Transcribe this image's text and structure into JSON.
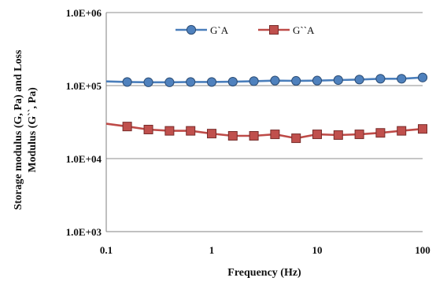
{
  "chart_data": {
    "type": "line",
    "title": "",
    "xlabel": "Frequency  (Hz)",
    "ylabel_lines": [
      "Storage  modulus (G, Pa) and Loss",
      "Modulus (G``, Pa)"
    ],
    "x_scale": "log",
    "y_scale": "log",
    "xlim": [
      0.1,
      100
    ],
    "ylim": [
      1000,
      1000000
    ],
    "x_ticks": [
      {
        "value": 0.1,
        "label": "0.1"
      },
      {
        "value": 1,
        "label": "1"
      },
      {
        "value": 10,
        "label": "10"
      },
      {
        "value": 100,
        "label": "100"
      }
    ],
    "y_ticks": [
      {
        "value": 1000,
        "label": "1.0E+03"
      },
      {
        "value": 10000,
        "label": "1.0E+04"
      },
      {
        "value": 100000,
        "label": "1.0E+05"
      },
      {
        "value": 1000000,
        "label": "1.0E+06"
      }
    ],
    "grid": {
      "horizontal_major": true,
      "vertical": false
    },
    "legend_placement": "top-center",
    "x": [
      0.1,
      0.158,
      0.251,
      0.398,
      0.631,
      1.0,
      1.585,
      2.512,
      3.981,
      6.31,
      10.0,
      15.85,
      25.12,
      39.81,
      63.1,
      100.0
    ],
    "series": [
      {
        "name": "G`A",
        "color": "#4A7EBB",
        "marker_fill": "#4F81BD",
        "marker": "circle",
        "values": [
          114000,
          112000,
          111000,
          111000,
          112000,
          112000,
          113000,
          115000,
          117000,
          116000,
          117000,
          119000,
          121000,
          124000,
          124000,
          129000
        ]
      },
      {
        "name": "G``A",
        "color": "#BE4B48",
        "marker_fill": "#C0504D",
        "marker": "square",
        "values": [
          30000,
          27500,
          25000,
          24000,
          24000,
          22000,
          20500,
          20500,
          21500,
          19000,
          21500,
          21000,
          21500,
          22500,
          24000,
          25500
        ]
      }
    ]
  }
}
